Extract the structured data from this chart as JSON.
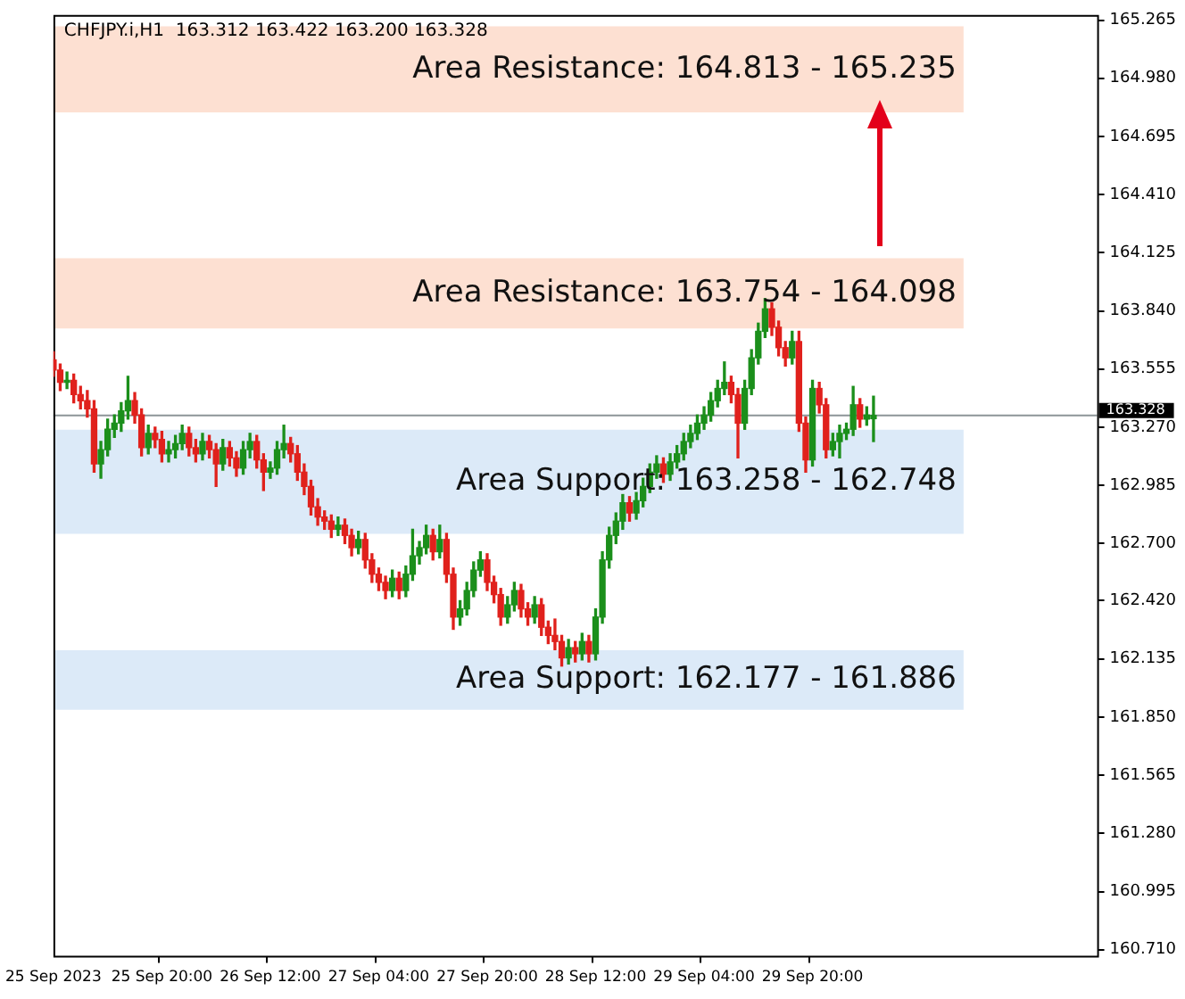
{
  "chart_data": {
    "type": "candlestick",
    "title": "CHFJPY.i,H1  163.312 163.422 163.200 163.328",
    "categories": [
      "25 Sep 2023",
      null,
      null,
      null,
      null,
      null,
      null,
      null,
      null,
      null,
      null,
      null,
      null,
      null,
      null,
      null,
      "25 Sep 20:00",
      null,
      null,
      null,
      null,
      null,
      null,
      null,
      null,
      null,
      null,
      null,
      null,
      null,
      null,
      null,
      "26 Sep 12:00",
      null,
      null,
      null,
      null,
      null,
      null,
      null,
      null,
      null,
      null,
      null,
      null,
      null,
      null,
      null,
      "27 Sep 04:00",
      null,
      null,
      null,
      null,
      null,
      null,
      null,
      null,
      null,
      null,
      null,
      null,
      null,
      null,
      null,
      "27 Sep 20:00",
      null,
      null,
      null,
      null,
      null,
      null,
      null,
      null,
      null,
      null,
      null,
      null,
      null,
      null,
      null,
      "28 Sep 12:00",
      null,
      null,
      null,
      null,
      null,
      null,
      null,
      null,
      null,
      null,
      null,
      null,
      null,
      null,
      null,
      "29 Sep 04:00",
      null,
      null,
      null,
      null,
      null,
      null,
      null,
      null,
      null,
      null,
      null,
      null,
      null,
      null,
      null,
      "29 Sep 20:00",
      null,
      null,
      null,
      null,
      null,
      null,
      null,
      null,
      null,
      null,
      null,
      null,
      null,
      null,
      null,
      null,
      null,
      null,
      null,
      null,
      null,
      null,
      null,
      null,
      null,
      null,
      null,
      null,
      null,
      null,
      null,
      null,
      null,
      null,
      null,
      null,
      null,
      null,
      null,
      null,
      null,
      null
    ],
    "ohlc": [
      [
        163.6,
        163.64,
        163.52,
        163.55
      ],
      [
        163.55,
        163.58,
        163.45,
        163.49
      ],
      [
        163.49,
        163.54,
        163.46,
        163.5
      ],
      [
        163.5,
        163.53,
        163.39,
        163.43
      ],
      [
        163.43,
        163.47,
        163.36,
        163.4
      ],
      [
        163.4,
        163.45,
        163.32,
        163.36
      ],
      [
        163.36,
        163.4,
        163.05,
        163.09
      ],
      [
        163.09,
        163.2,
        163.02,
        163.16
      ],
      [
        163.16,
        163.31,
        163.13,
        163.26
      ],
      [
        163.26,
        163.33,
        163.22,
        163.29
      ],
      [
        163.29,
        163.39,
        163.25,
        163.35
      ],
      [
        163.35,
        163.52,
        163.31,
        163.4
      ],
      [
        163.4,
        163.44,
        163.29,
        163.33
      ],
      [
        163.33,
        163.36,
        163.13,
        163.17
      ],
      [
        163.17,
        163.28,
        163.14,
        163.24
      ],
      [
        163.24,
        163.27,
        163.17,
        163.21
      ],
      [
        163.21,
        163.25,
        163.1,
        163.14
      ],
      [
        163.14,
        163.2,
        163.1,
        163.16
      ],
      [
        163.16,
        163.23,
        163.12,
        163.19
      ],
      [
        163.19,
        163.28,
        163.16,
        163.24
      ],
      [
        163.24,
        163.27,
        163.13,
        163.17
      ],
      [
        163.17,
        163.21,
        163.1,
        163.14
      ],
      [
        163.14,
        163.24,
        163.11,
        163.2
      ],
      [
        163.2,
        163.23,
        163.12,
        163.16
      ],
      [
        163.16,
        163.19,
        162.98,
        163.09
      ],
      [
        163.09,
        163.21,
        163.06,
        163.17
      ],
      [
        163.17,
        163.2,
        163.08,
        163.12
      ],
      [
        163.12,
        163.15,
        163.03,
        163.07
      ],
      [
        163.07,
        163.2,
        163.04,
        163.16
      ],
      [
        163.16,
        163.24,
        163.12,
        163.2
      ],
      [
        163.2,
        163.23,
        163.07,
        163.11
      ],
      [
        163.11,
        163.14,
        162.96,
        163.05
      ],
      [
        163.05,
        163.1,
        163.02,
        163.07
      ],
      [
        163.07,
        163.2,
        163.04,
        163.16
      ],
      [
        163.16,
        163.28,
        163.12,
        163.19
      ],
      [
        163.19,
        163.22,
        163.1,
        163.14
      ],
      [
        163.14,
        163.18,
        163.01,
        163.05
      ],
      [
        163.05,
        163.09,
        162.94,
        162.98
      ],
      [
        162.98,
        163.01,
        162.84,
        162.88
      ],
      [
        162.88,
        162.92,
        162.79,
        162.83
      ],
      [
        162.83,
        162.86,
        162.77,
        162.81
      ],
      [
        162.81,
        162.84,
        162.73,
        162.77
      ],
      [
        162.77,
        162.83,
        162.74,
        162.79
      ],
      [
        162.79,
        162.82,
        162.7,
        162.74
      ],
      [
        162.74,
        162.77,
        162.64,
        162.68
      ],
      [
        162.68,
        162.76,
        162.65,
        162.72
      ],
      [
        162.72,
        162.75,
        162.58,
        162.62
      ],
      [
        162.62,
        162.65,
        162.51,
        162.55
      ],
      [
        162.55,
        162.58,
        162.47,
        162.51
      ],
      [
        162.51,
        162.54,
        162.43,
        162.47
      ],
      [
        162.47,
        162.57,
        162.44,
        162.53
      ],
      [
        162.53,
        162.56,
        162.43,
        162.47
      ],
      [
        162.47,
        162.59,
        162.44,
        162.55
      ],
      [
        162.55,
        162.77,
        162.52,
        162.64
      ],
      [
        162.64,
        162.71,
        162.6,
        162.68
      ],
      [
        162.68,
        162.79,
        162.65,
        162.74
      ],
      [
        162.74,
        162.77,
        162.62,
        162.66
      ],
      [
        162.66,
        162.79,
        162.63,
        162.72
      ],
      [
        162.72,
        162.75,
        162.51,
        162.55
      ],
      [
        162.55,
        162.58,
        162.28,
        162.34
      ],
      [
        162.34,
        162.42,
        162.3,
        162.38
      ],
      [
        162.38,
        162.51,
        162.35,
        162.47
      ],
      [
        162.47,
        162.61,
        162.44,
        162.57
      ],
      [
        162.57,
        162.66,
        162.54,
        162.62
      ],
      [
        162.62,
        162.65,
        162.47,
        162.51
      ],
      [
        162.51,
        162.54,
        162.41,
        162.45
      ],
      [
        162.45,
        162.48,
        162.3,
        162.34
      ],
      [
        162.34,
        162.44,
        162.31,
        162.4
      ],
      [
        162.4,
        162.51,
        162.37,
        162.47
      ],
      [
        162.47,
        162.5,
        162.34,
        162.38
      ],
      [
        162.38,
        162.41,
        162.3,
        162.34
      ],
      [
        162.34,
        162.44,
        162.31,
        162.4
      ],
      [
        162.4,
        162.43,
        162.25,
        162.29
      ],
      [
        162.29,
        162.32,
        162.21,
        162.25
      ],
      [
        162.25,
        162.33,
        162.18,
        162.22
      ],
      [
        162.22,
        162.25,
        162.1,
        162.14
      ],
      [
        162.14,
        162.23,
        162.11,
        162.19
      ],
      [
        162.19,
        162.22,
        162.12,
        162.16
      ],
      [
        162.16,
        162.26,
        162.13,
        162.22
      ],
      [
        162.22,
        162.25,
        162.12,
        162.16
      ],
      [
        162.16,
        162.38,
        162.13,
        162.34
      ],
      [
        162.34,
        162.66,
        162.31,
        162.62
      ],
      [
        162.62,
        162.78,
        162.58,
        162.74
      ],
      [
        162.74,
        162.85,
        162.7,
        162.81
      ],
      [
        162.81,
        162.94,
        162.77,
        162.9
      ],
      [
        162.9,
        162.93,
        162.81,
        162.85
      ],
      [
        162.85,
        162.95,
        162.82,
        162.91
      ],
      [
        162.91,
        163.02,
        162.88,
        162.98
      ],
      [
        162.98,
        163.09,
        162.95,
        163.05
      ],
      [
        163.05,
        163.13,
        163.02,
        163.09
      ],
      [
        163.09,
        163.12,
        163.0,
        163.04
      ],
      [
        163.04,
        163.14,
        163.01,
        163.1
      ],
      [
        163.1,
        163.18,
        163.07,
        163.14
      ],
      [
        163.14,
        163.24,
        163.11,
        163.2
      ],
      [
        163.2,
        163.28,
        163.17,
        163.24
      ],
      [
        163.24,
        163.33,
        163.21,
        163.29
      ],
      [
        163.29,
        163.37,
        163.26,
        163.33
      ],
      [
        163.33,
        163.44,
        163.3,
        163.4
      ],
      [
        163.4,
        163.5,
        163.37,
        163.46
      ],
      [
        163.46,
        163.59,
        163.43,
        163.49
      ],
      [
        163.49,
        163.52,
        163.39,
        163.43
      ],
      [
        163.43,
        163.46,
        163.12,
        163.29
      ],
      [
        163.29,
        163.5,
        163.26,
        163.46
      ],
      [
        163.46,
        163.65,
        163.43,
        163.61
      ],
      [
        163.61,
        163.78,
        163.58,
        163.74
      ],
      [
        163.74,
        163.9,
        163.71,
        163.85
      ],
      [
        163.85,
        163.88,
        163.72,
        163.76
      ],
      [
        163.76,
        163.79,
        163.62,
        163.66
      ],
      [
        163.66,
        163.69,
        163.57,
        163.61
      ],
      [
        163.61,
        163.74,
        163.58,
        163.69
      ],
      [
        163.69,
        163.74,
        163.25,
        163.29
      ],
      [
        163.29,
        163.32,
        163.05,
        163.11
      ],
      [
        163.11,
        163.5,
        163.08,
        163.46
      ],
      [
        163.46,
        163.49,
        163.34,
        163.38
      ],
      [
        163.38,
        163.41,
        163.12,
        163.16
      ],
      [
        163.16,
        163.24,
        163.13,
        163.2
      ],
      [
        163.2,
        163.28,
        163.12,
        163.24
      ],
      [
        163.24,
        163.29,
        163.21,
        163.26
      ],
      [
        163.26,
        163.47,
        163.23,
        163.38
      ],
      [
        163.38,
        163.41,
        163.27,
        163.31
      ],
      [
        163.31,
        163.37,
        163.28,
        163.33
      ],
      [
        163.312,
        163.422,
        163.2,
        163.328
      ],
      null,
      null,
      null,
      null,
      null,
      null,
      null,
      null,
      null,
      null,
      null,
      null,
      null,
      null,
      null,
      null,
      null,
      null,
      null,
      null,
      null,
      null,
      null,
      null,
      null,
      null,
      null,
      null,
      null,
      null,
      null,
      null,
      null
    ],
    "ylim": [
      160.68,
      165.29
    ],
    "yticks": [
      165.265,
      {
        "value": 164.98,
        "label": "164.980"
      },
      164.695,
      {
        "value": 164.41,
        "label": "164.410"
      },
      164.125,
      {
        "value": 163.84,
        "label": "163.840"
      },
      163.555,
      {
        "value": 163.27,
        "label": "163.270"
      },
      162.985,
      {
        "value": 162.7,
        "label": "162.700"
      },
      {
        "value": 162.42,
        "label": "162.420"
      },
      162.135,
      {
        "value": 161.85,
        "label": "161.850"
      },
      161.565,
      {
        "value": 161.28,
        "label": "161.280"
      },
      160.995,
      {
        "value": 160.71,
        "label": "160.710"
      }
    ],
    "bands": [
      {
        "axis": "y",
        "from": 164.813,
        "to": 165.235,
        "label": "Area Resistance: 164.813 - 165.235",
        "color": "#fde0d2"
      },
      {
        "axis": "y",
        "from": 163.754,
        "to": 164.098,
        "label": "Area Resistance: 163.754 - 164.098",
        "color": "#fde0d2"
      },
      {
        "axis": "y",
        "from": 162.748,
        "to": 163.258,
        "label": "Area Support: 163.258 - 162.748",
        "color": "#dceaf8"
      },
      {
        "axis": "y",
        "from": 161.886,
        "to": 162.177,
        "label": "Area Support: 162.177 - 161.886",
        "color": "#dceaf8"
      }
    ],
    "ref_lines": [
      {
        "axis": "y",
        "value": 163.328,
        "label": "163.328",
        "color": "#8c9497"
      }
    ],
    "grid": false,
    "legend": false
  }
}
